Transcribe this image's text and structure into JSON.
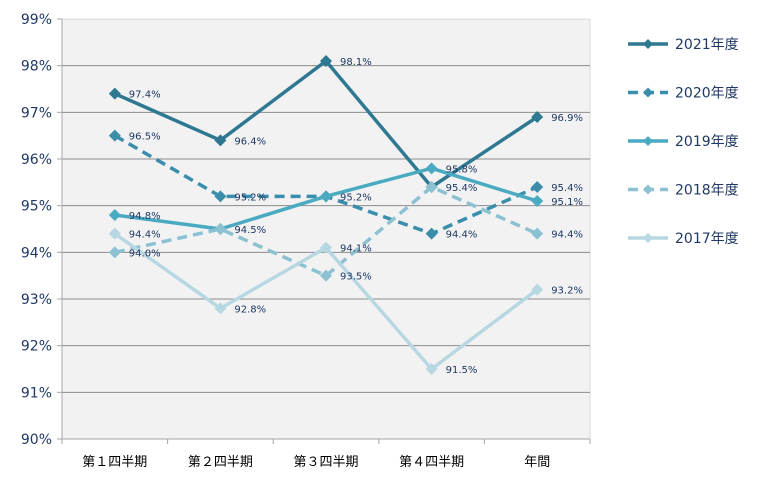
{
  "chart_data": {
    "type": "line",
    "categories": [
      "第１四半期",
      "第２四半期",
      "第３四半期",
      "第４四半期",
      "年間"
    ],
    "y_ticks": [
      "90%",
      "91%",
      "92%",
      "93%",
      "94%",
      "95%",
      "96%",
      "97%",
      "98%",
      "99%"
    ],
    "ylim": [
      90,
      99
    ],
    "grid": true,
    "legend_position": "right",
    "series": [
      {
        "name": "2021年度",
        "values": [
          97.4,
          96.4,
          98.1,
          95.4,
          96.9
        ],
        "labels": [
          "97.4%",
          "96.4%",
          "98.1%",
          "95.4%",
          "96.9%"
        ],
        "color": "#2e7891",
        "dash": "solid"
      },
      {
        "name": "2020年度",
        "values": [
          96.5,
          95.2,
          95.2,
          94.4,
          95.4
        ],
        "labels": [
          "96.5%",
          "95.2%",
          "95.2%",
          "94.4%",
          "95.4%"
        ],
        "color": "#3a8eab",
        "dash": "dashed"
      },
      {
        "name": "2019年度",
        "values": [
          94.8,
          94.5,
          95.2,
          95.8,
          95.1
        ],
        "labels": [
          "94.8%",
          "94.5%",
          "",
          "95.8%",
          "95.1%"
        ],
        "color": "#4aaac1",
        "dash": "solid"
      },
      {
        "name": "2018年度",
        "values": [
          94.0,
          94.5,
          93.5,
          95.4,
          94.4
        ],
        "labels": [
          "94.0%",
          "",
          "93.5%",
          "",
          "94.4%"
        ],
        "color": "#8cc1d2",
        "dash": "dashed"
      },
      {
        "name": "2017年度",
        "values": [
          94.4,
          92.8,
          94.1,
          91.5,
          93.2
        ],
        "labels": [
          "94.4%",
          "92.8%",
          "94.1%",
          "91.5%",
          "93.2%"
        ],
        "color": "#b7d8e2",
        "dash": "solid"
      }
    ]
  }
}
